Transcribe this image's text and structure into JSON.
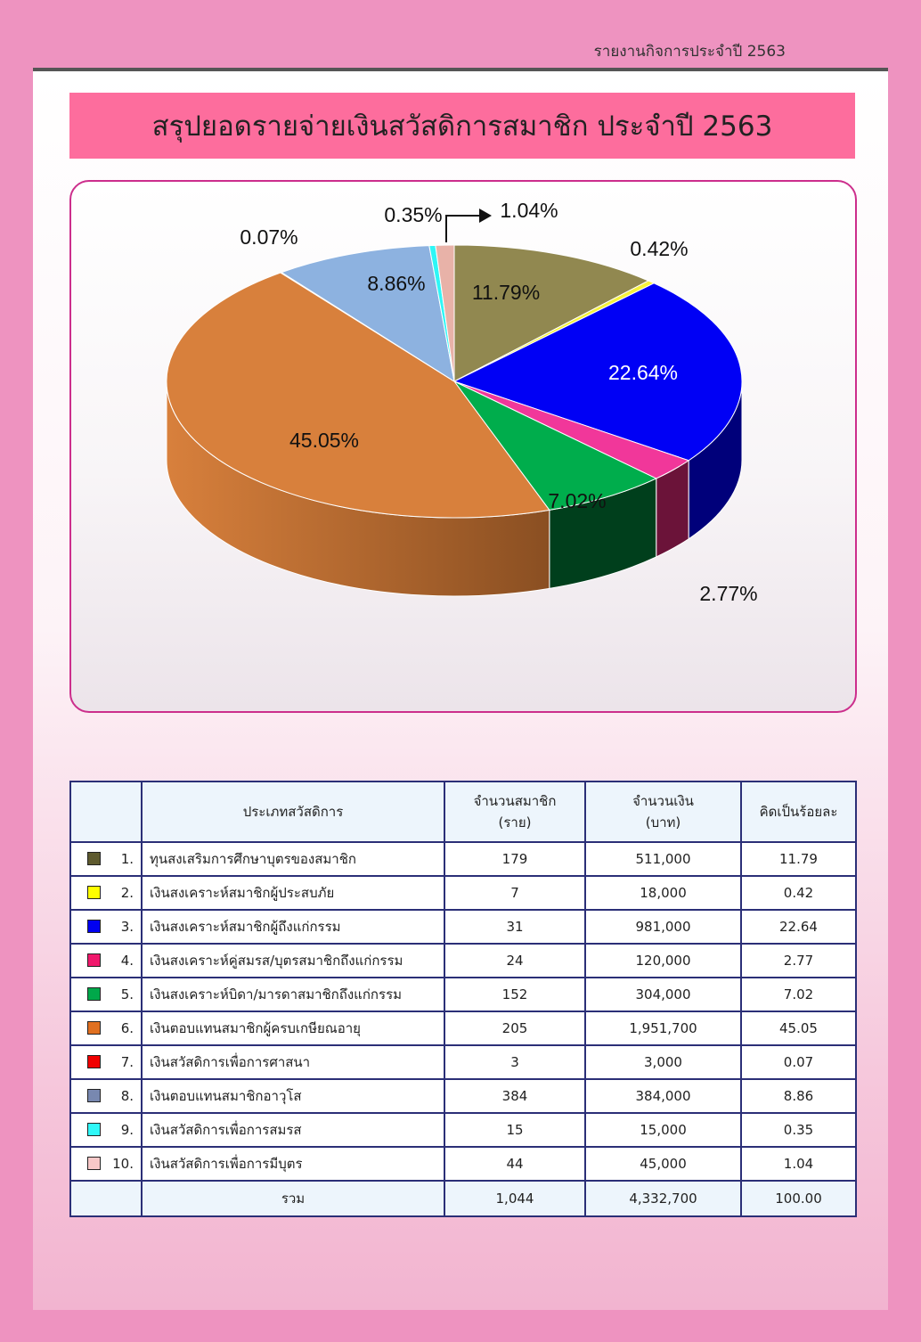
{
  "header": {
    "report_title": "รายงานกิจการประจำปี 2563"
  },
  "page_title": "สรุปยอดรายจ่ายเงินสวัสดิการสมาชิก ประจำปี 2563",
  "chart_data": {
    "type": "pie",
    "three_d": true,
    "start_angle_note": "first slice starts at 12 o'clock, clockwise",
    "slices": [
      {
        "label": "11.79%",
        "value": 11.79,
        "color": "#918850",
        "side_color": "#5e5830"
      },
      {
        "label": "0.42%",
        "value": 0.42,
        "color": "#f5f23a",
        "side_color": "#a8a510"
      },
      {
        "label": "22.64%",
        "value": 22.64,
        "color": "#0000f5",
        "side_color": "#00007a"
      },
      {
        "label": "2.77%",
        "value": 2.77,
        "color": "#f1379a",
        "side_color": "#6b1339"
      },
      {
        "label": "7.02%",
        "value": 7.02,
        "color": "#00ad4c",
        "side_color": "#003f1c"
      },
      {
        "label": "45.05%",
        "value": 45.05,
        "color": "#d8803c",
        "side_color": "#8a4f22"
      },
      {
        "label": "0.07%",
        "value": 0.07,
        "color": "#e0201a",
        "side_color": "#7a0f0c"
      },
      {
        "label": "8.86%",
        "value": 8.86,
        "color": "#8db2e0",
        "side_color": "#4a6a90"
      },
      {
        "label": "0.35%",
        "value": 0.35,
        "color": "#2ef6f6",
        "side_color": "#108a8a"
      },
      {
        "label": "1.04%",
        "value": 1.04,
        "color": "#e8b2a8",
        "side_color": "#9a6a62"
      }
    ]
  },
  "table": {
    "headers": {
      "type": "ประเภทสวัสดิการ",
      "members_line1": "จำนวนสมาชิก",
      "members_line2": "(ราย)",
      "amount_line1": "จำนวนเงิน",
      "amount_line2": "(บาท)",
      "percent": "คิดเป็นร้อยละ"
    },
    "rows": [
      {
        "num": "1.",
        "color": "#5e5a2e",
        "name": "ทุนสงเสริมการศึกษาบุตรของสมาชิก",
        "members": "179",
        "amount": "511,000",
        "percent": "11.79"
      },
      {
        "num": "2.",
        "color": "#ffff00",
        "name": "เงินสงเคราะห์สมาชิกผู้ประสบภัย",
        "members": "7",
        "amount": "18,000",
        "percent": "0.42"
      },
      {
        "num": "3.",
        "color": "#0000f0",
        "name": "เงินสงเคราะห์สมาชิกผู้ถึงแก่กรรม",
        "members": "31",
        "amount": "981,000",
        "percent": "22.64"
      },
      {
        "num": "4.",
        "color": "#f0186c",
        "name": "เงินสงเคราะห์คู่สมรส/บุตรสมาชิกถึงแก่กรรม",
        "members": "24",
        "amount": "120,000",
        "percent": "2.77"
      },
      {
        "num": "5.",
        "color": "#00a84a",
        "name": "เงินสงเคราะห์บิดา/มารดาสมาชิกถึงแก่กรรม",
        "members": "152",
        "amount": "304,000",
        "percent": "7.02"
      },
      {
        "num": "6.",
        "color": "#e07020",
        "name": "เงินตอบแทนสมาชิกผู้ครบเกษียณอายุ",
        "members": "205",
        "amount": "1,951,700",
        "percent": "45.05"
      },
      {
        "num": "7.",
        "color": "#f00000",
        "name": "เงินสวัสดิการเพื่อการศาสนา",
        "members": "3",
        "amount": "3,000",
        "percent": "0.07"
      },
      {
        "num": "8.",
        "color": "#7888b0",
        "name": "เงินตอบแทนสมาชิกอาวุโส",
        "members": "384",
        "amount": "384,000",
        "percent": "8.86"
      },
      {
        "num": "9.",
        "color": "#30f8f8",
        "name": "เงินสวัสดิการเพื่อการสมรส",
        "members": "15",
        "amount": "15,000",
        "percent": "0.35"
      },
      {
        "num": "10.",
        "color": "#f8c8c8",
        "name": "เงินสวัสดิการเพื่อการมีบุตร",
        "members": "44",
        "amount": "45,000",
        "percent": "1.04"
      }
    ],
    "total": {
      "label": "รวม",
      "members": "1,044",
      "amount": "4,332,700",
      "percent": "100.00"
    }
  }
}
